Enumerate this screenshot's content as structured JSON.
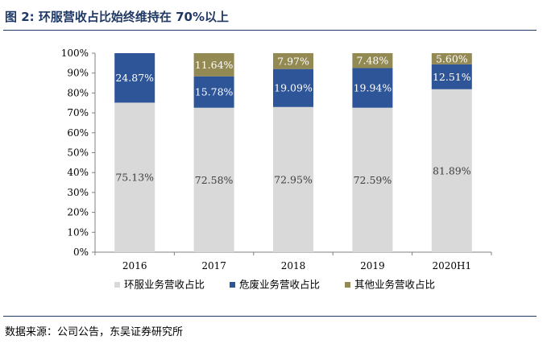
{
  "figure": {
    "title": "图 2:  环服营收占比始终维持在 70%以上",
    "source": "数据来源：公司公告，东吴证券研究所"
  },
  "chart_data": {
    "type": "bar",
    "stacked": true,
    "title": "",
    "xlabel": "",
    "ylabel": "",
    "categories": [
      "2016",
      "2017",
      "2018",
      "2019",
      "2020H1"
    ],
    "ylim": [
      0,
      100
    ],
    "yticks": [
      "0%",
      "10%",
      "20%",
      "30%",
      "40%",
      "50%",
      "60%",
      "70%",
      "80%",
      "90%",
      "100%"
    ],
    "grid": false,
    "legend_position": "bottom",
    "series": [
      {
        "name": "环服业务营收占比",
        "color": "#d9d9d9",
        "label_color": "#404040",
        "values": [
          75.13,
          72.58,
          72.95,
          72.59,
          81.89
        ],
        "labels": [
          "75.13%",
          "72.58%",
          "72.95%",
          "72.59%",
          "81.89%"
        ]
      },
      {
        "name": "危废业务营收占比",
        "color": "#2e5597",
        "label_color": "#ffffff",
        "values": [
          24.87,
          15.78,
          19.09,
          19.94,
          12.51
        ],
        "labels": [
          "24.87%",
          "15.78%",
          "19.09%",
          "19.94%",
          "12.51%"
        ]
      },
      {
        "name": "其他业务营收占比",
        "color": "#938953",
        "label_color": "#ffffff",
        "values": [
          0,
          11.64,
          7.97,
          7.48,
          5.6
        ],
        "labels": [
          "",
          "11.64%",
          "7.97%",
          "7.48%",
          "5.60%"
        ]
      }
    ]
  }
}
